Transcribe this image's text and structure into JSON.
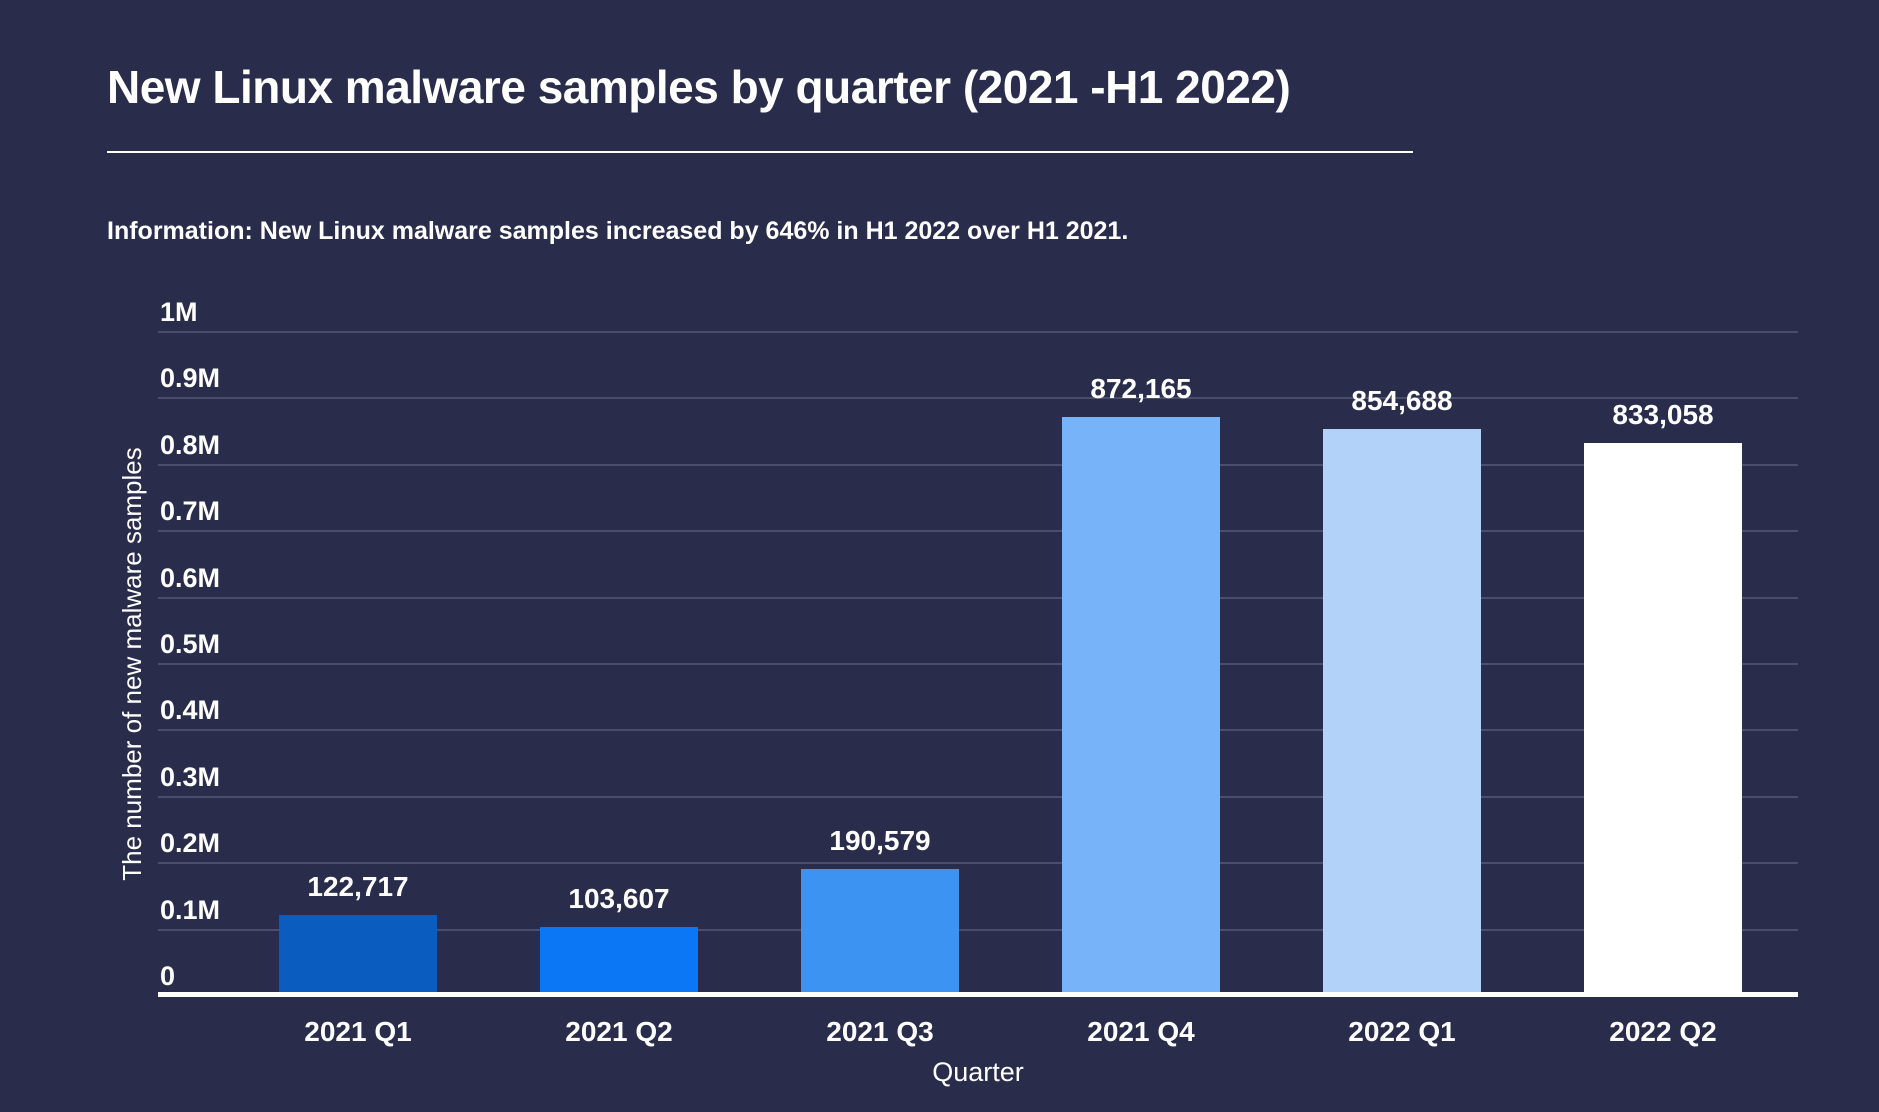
{
  "header": {
    "title": "New Linux malware samples by quarter (2021 -H1 2022)"
  },
  "info": {
    "label": "Information:",
    "text": " New Linux malware samples increased by 646% in H1 2022 over H1 2021."
  },
  "chart_data": {
    "type": "bar",
    "title": "New Linux malware samples by quarter (2021 -H1 2022)",
    "categories": [
      "2021 Q1",
      "2021 Q2",
      "2021 Q3",
      "2021 Q4",
      "2022 Q1",
      "2022 Q2"
    ],
    "values": [
      122717,
      103607,
      190579,
      872165,
      854688,
      833058
    ],
    "value_labels": [
      "122,717",
      "103,607",
      "190,579",
      "872,165",
      "854,688",
      "833,058"
    ],
    "bar_colors": [
      "#0A5CBE",
      "#0B77F5",
      "#3D93F2",
      "#76B3F8",
      "#B3D2F9",
      "#FFFFFF"
    ],
    "xlabel": "Quarter",
    "ylabel": "The number of new malware samples",
    "ylim": [
      0,
      1000000
    ],
    "ytick_values": [
      0,
      100000,
      200000,
      300000,
      400000,
      500000,
      600000,
      700000,
      800000,
      900000,
      1000000
    ],
    "ytick_labels": [
      "0",
      "0.1M",
      "0.2M",
      "0.3M",
      "0.4M",
      "0.5M",
      "0.6M",
      "0.7M",
      "0.8M",
      "0.9M",
      "1M"
    ],
    "grid": true,
    "legend": "none",
    "colors": {
      "background": "#292C4B",
      "gridline": "#4A4E6C",
      "axis_line": "#FFFFFF",
      "text": "#FFFFFF"
    }
  }
}
